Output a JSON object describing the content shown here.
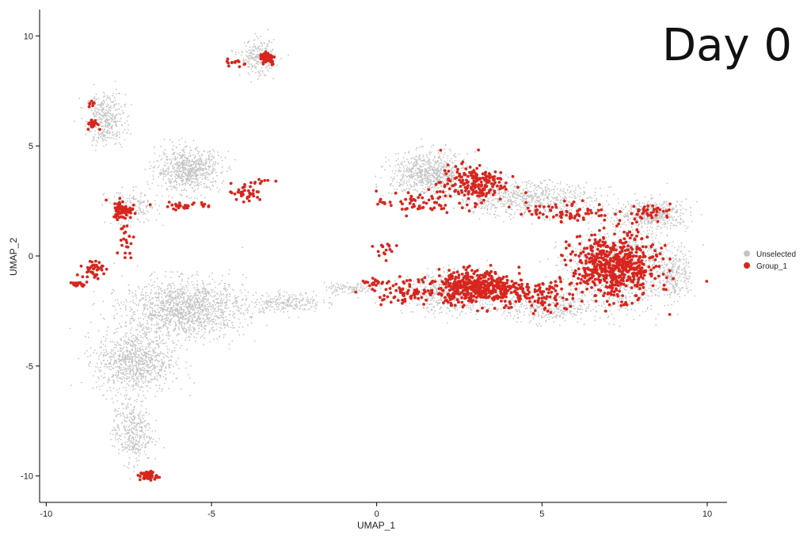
{
  "figure": {
    "title": "Day 0"
  },
  "chart_data": {
    "type": "scatter",
    "title": "Day 0",
    "xlabel": "UMAP_1",
    "ylabel": "UMAP_2",
    "xlim": [
      -10.2,
      10.6
    ],
    "ylim": [
      -11.2,
      11.2
    ],
    "x_ticks": [
      -10,
      -5,
      0,
      5,
      10
    ],
    "y_ticks": [
      -10,
      -5,
      0,
      5,
      10
    ],
    "x_tick_labels": [
      "-10",
      "-5",
      "0",
      "5",
      "10"
    ],
    "y_tick_labels": [
      "-10",
      "-5",
      "0",
      "5",
      "10"
    ],
    "grid": false,
    "legend_position": "right",
    "colors": {
      "Unselected": "#c4c4c4",
      "Group_1": "#d7261e"
    },
    "series": [
      {
        "name": "Unselected",
        "color": "#c4c4c4",
        "clusters": [
          {
            "center": [
              -8.2,
              6.2
            ],
            "spread": [
              0.45,
              0.9
            ],
            "count": 380
          },
          {
            "center": [
              -5.7,
              3.9
            ],
            "spread": [
              0.75,
              0.75
            ],
            "count": 700
          },
          {
            "center": [
              -3.6,
              9.0
            ],
            "spread": [
              0.4,
              0.6
            ],
            "count": 240
          },
          {
            "center": [
              -7.4,
              2.2
            ],
            "spread": [
              0.6,
              0.6
            ],
            "count": 170
          },
          {
            "center": [
              -5.8,
              -2.4
            ],
            "spread": [
              1.4,
              1.0
            ],
            "count": 1400
          },
          {
            "center": [
              -7.3,
              -4.8
            ],
            "spread": [
              0.9,
              1.1
            ],
            "count": 900
          },
          {
            "center": [
              -7.4,
              -8.0
            ],
            "spread": [
              0.45,
              1.1
            ],
            "count": 380
          },
          {
            "center": [
              -2.7,
              -2.1
            ],
            "spread": [
              0.8,
              0.35
            ],
            "count": 220
          },
          {
            "center": [
              -0.8,
              -1.5
            ],
            "spread": [
              0.6,
              0.2
            ],
            "count": 110
          },
          {
            "center": [
              1.6,
              3.7
            ],
            "spread": [
              0.9,
              0.75
            ],
            "count": 750
          },
          {
            "center": [
              4.5,
              2.6
            ],
            "spread": [
              1.6,
              0.6
            ],
            "count": 700
          },
          {
            "center": [
              8.4,
              1.9
            ],
            "spread": [
              0.8,
              0.5
            ],
            "count": 450
          },
          {
            "center": [
              2.4,
              -1.7
            ],
            "spread": [
              1.2,
              0.7
            ],
            "count": 650
          },
          {
            "center": [
              7.3,
              -0.6
            ],
            "spread": [
              1.2,
              1.4
            ],
            "count": 1000
          },
          {
            "center": [
              9.0,
              -0.8
            ],
            "spread": [
              0.4,
              0.9
            ],
            "count": 250
          },
          {
            "center": [
              5.2,
              -2.4
            ],
            "spread": [
              1.0,
              0.5
            ],
            "count": 360
          }
        ]
      },
      {
        "name": "Group_1",
        "color": "#d7261e",
        "clusters": [
          {
            "center": [
              -3.3,
              9.0
            ],
            "spread": [
              0.18,
              0.25
            ],
            "count": 60
          },
          {
            "center": [
              -4.2,
              8.8
            ],
            "spread": [
              0.25,
              0.12
            ],
            "count": 14
          },
          {
            "center": [
              -8.6,
              6.0
            ],
            "spread": [
              0.12,
              0.18
            ],
            "count": 28
          },
          {
            "center": [
              -8.6,
              6.9
            ],
            "spread": [
              0.08,
              0.12
            ],
            "count": 8
          },
          {
            "center": [
              -7.7,
              2.1
            ],
            "spread": [
              0.22,
              0.32
            ],
            "count": 75
          },
          {
            "center": [
              -5.8,
              2.3
            ],
            "spread": [
              0.7,
              0.12
            ],
            "count": 30
          },
          {
            "center": [
              -4.0,
              2.8
            ],
            "spread": [
              0.45,
              0.35
            ],
            "count": 35
          },
          {
            "center": [
              -3.6,
              3.4
            ],
            "spread": [
              0.4,
              0.1
            ],
            "count": 10
          },
          {
            "center": [
              -8.6,
              -0.6
            ],
            "spread": [
              0.25,
              0.3
            ],
            "count": 40
          },
          {
            "center": [
              -9.0,
              -1.3
            ],
            "spread": [
              0.16,
              0.08
            ],
            "count": 24
          },
          {
            "center": [
              -7.6,
              0.7
            ],
            "spread": [
              0.2,
              0.8
            ],
            "count": 22
          },
          {
            "center": [
              -6.9,
              -10.0
            ],
            "spread": [
              0.2,
              0.16
            ],
            "count": 55
          },
          {
            "center": [
              2.9,
              3.3
            ],
            "spread": [
              0.75,
              0.65
            ],
            "count": 200
          },
          {
            "center": [
              1.2,
              2.4
            ],
            "spread": [
              0.9,
              0.4
            ],
            "count": 60
          },
          {
            "center": [
              5.8,
              2.0
            ],
            "spread": [
              1.0,
              0.35
            ],
            "count": 80
          },
          {
            "center": [
              3.0,
              -1.4
            ],
            "spread": [
              0.85,
              0.55
            ],
            "count": 420
          },
          {
            "center": [
              4.6,
              -1.8
            ],
            "spread": [
              1.1,
              0.6
            ],
            "count": 140
          },
          {
            "center": [
              1.0,
              -1.6
            ],
            "spread": [
              0.9,
              0.4
            ],
            "count": 90
          },
          {
            "center": [
              7.2,
              -0.5
            ],
            "spread": [
              1.0,
              1.1
            ],
            "count": 600
          },
          {
            "center": [
              -0.1,
              -1.2
            ],
            "spread": [
              0.3,
              0.15
            ],
            "count": 20
          },
          {
            "center": [
              0.3,
              0.2
            ],
            "spread": [
              0.3,
              0.3
            ],
            "count": 16
          },
          {
            "center": [
              8.3,
              2.0
            ],
            "spread": [
              0.5,
              0.3
            ],
            "count": 40
          }
        ]
      }
    ]
  },
  "legend": {
    "items": [
      {
        "label": "Unselected",
        "color": "#c4c4c4"
      },
      {
        "label": "Group_1",
        "color": "#d7261e"
      }
    ]
  }
}
